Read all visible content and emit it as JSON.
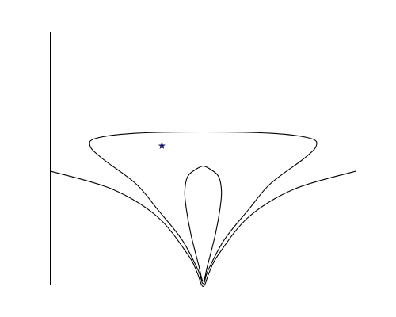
{
  "chart_data": {
    "type": "line",
    "title": "",
    "xlabel": "",
    "ylabel": "",
    "grid": false,
    "legend": "none",
    "ticks": "none",
    "line_color": "#000000",
    "marker_color": "#191970",
    "marker_symbol": "star",
    "contours": [
      {
        "id": "outer",
        "closed": false,
        "points": [
          [
            0,
            0.45
          ],
          [
            0.2,
            0.38
          ],
          [
            0.35,
            0.27
          ],
          [
            0.45,
            0.12
          ],
          [
            0.48,
            0.05
          ],
          [
            0.495,
            0
          ],
          [
            0.505,
            0
          ],
          [
            0.52,
            0.05
          ],
          [
            0.55,
            0.12
          ],
          [
            0.65,
            0.27
          ],
          [
            0.8,
            0.38
          ],
          [
            1,
            0.45
          ]
        ]
      },
      {
        "id": "middle",
        "closed": true,
        "points": [
          [
            0.5,
            0.005
          ],
          [
            0.517,
            0.06
          ],
          [
            0.57,
            0.18
          ],
          [
            0.65,
            0.3
          ],
          [
            0.72,
            0.4
          ],
          [
            0.83,
            0.5
          ],
          [
            0.87,
            0.55
          ],
          [
            0.85,
            0.58
          ],
          [
            0.72,
            0.6
          ],
          [
            0.5,
            0.605
          ],
          [
            0.28,
            0.6
          ],
          [
            0.15,
            0.58
          ],
          [
            0.13,
            0.55
          ],
          [
            0.17,
            0.5
          ],
          [
            0.28,
            0.4
          ],
          [
            0.35,
            0.3
          ],
          [
            0.43,
            0.18
          ],
          [
            0.483,
            0.06
          ]
        ]
      },
      {
        "id": "inner",
        "closed": true,
        "points": [
          [
            0.5,
            0.015
          ],
          [
            0.515,
            0.08
          ],
          [
            0.54,
            0.2
          ],
          [
            0.555,
            0.3
          ],
          [
            0.56,
            0.37
          ],
          [
            0.55,
            0.43
          ],
          [
            0.52,
            0.46
          ],
          [
            0.5,
            0.47
          ],
          [
            0.48,
            0.46
          ],
          [
            0.45,
            0.43
          ],
          [
            0.44,
            0.37
          ],
          [
            0.445,
            0.3
          ],
          [
            0.46,
            0.2
          ],
          [
            0.485,
            0.08
          ]
        ]
      }
    ],
    "markers": [
      {
        "x": 0.365,
        "y": 0.55
      }
    ]
  }
}
